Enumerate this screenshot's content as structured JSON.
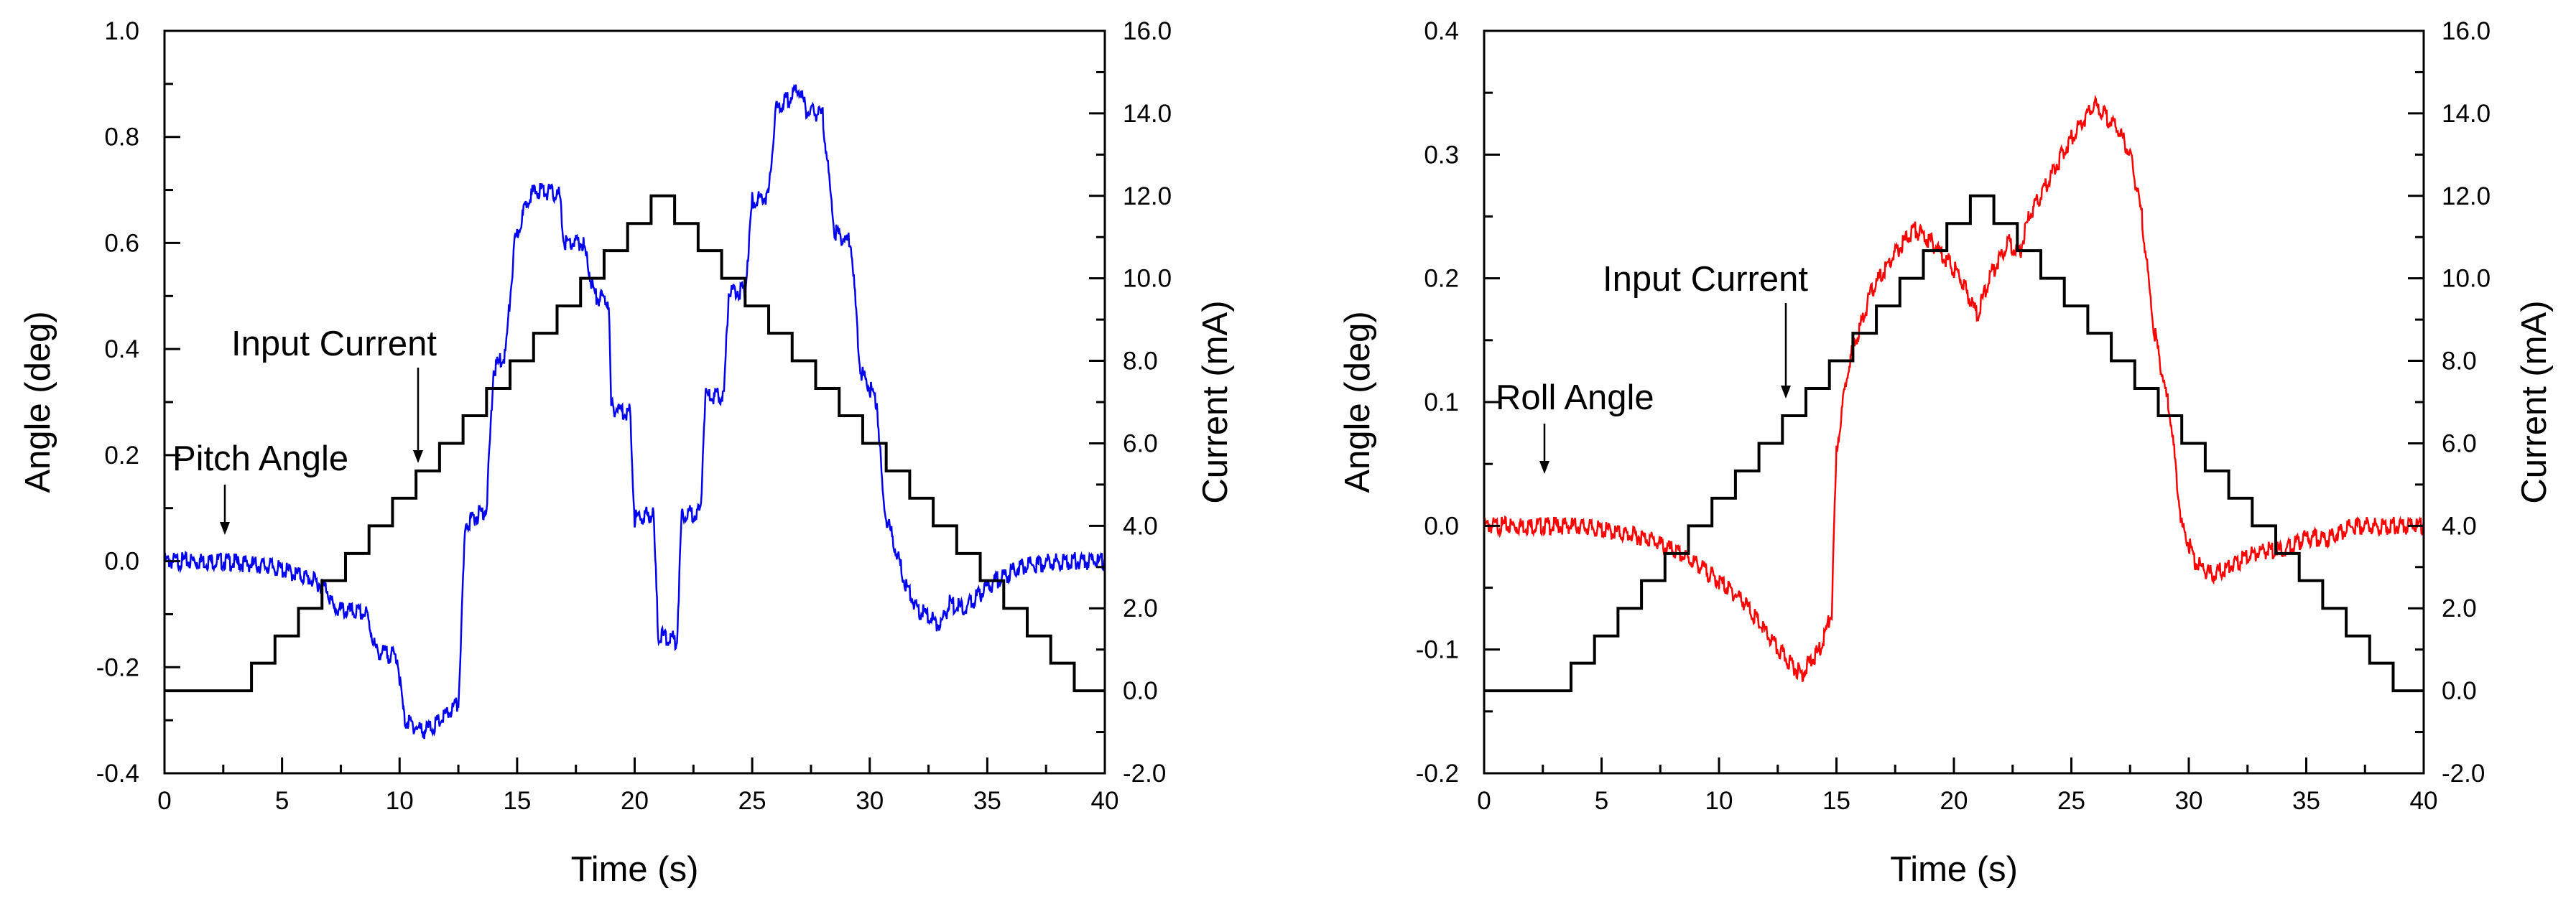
{
  "chart_data": [
    {
      "type": "line",
      "xlabel": "Time (s)",
      "ylabel": "Angle (deg)",
      "y2label": "Current (mA)",
      "xlim": [
        0,
        40
      ],
      "ylim": [
        -0.4,
        1.0
      ],
      "y2lim": [
        -2.0,
        16.0
      ],
      "xticks": [
        "0",
        "5",
        "10",
        "15",
        "20",
        "25",
        "30",
        "35",
        "40"
      ],
      "yticks": [
        "-0.4",
        "-0.2",
        "0.0",
        "0.2",
        "0.4",
        "0.6",
        "0.8",
        "1.0"
      ],
      "y2ticks": [
        "-2.0",
        "0.0",
        "2.0",
        "4.0",
        "6.0",
        "8.0",
        "10.0",
        "12.0",
        "14.0",
        "16.0"
      ],
      "annotations": [
        {
          "text": "Pitch Angle",
          "points_to": {
            "x": 2.6,
            "y": -0.04
          }
        },
        {
          "text": "Input Current",
          "points_to": {
            "x": 10.8,
            "y": 0.11
          }
        }
      ],
      "series": [
        {
          "name": "Pitch Angle",
          "axis": "left",
          "color": "#0000ee",
          "x": [
            0,
            2.5,
            4.5,
            6.0,
            6.9,
            7.2,
            8.6,
            9.0,
            9.9,
            10.2,
            11.0,
            11.5,
            12.5,
            12.8,
            13.7,
            14.0,
            14.5,
            14.9,
            15.5,
            16.0,
            16.8,
            17.0,
            17.8,
            18.3,
            18.9,
            19.0,
            19.8,
            20.0,
            20.8,
            21.0,
            21.8,
            22.0,
            22.8,
            23.0,
            23.8,
            24.0,
            24.7,
            25.0,
            25.7,
            26.0,
            27.0,
            27.3,
            28.0,
            28.5,
            29.2,
            29.6,
            30.3,
            30.6,
            31.5,
            32.0,
            33.0,
            33.4,
            34.0,
            34.5,
            35.0,
            35.6,
            36.5,
            38.0,
            40.0
          ],
          "y": [
            0.0,
            0.0,
            -0.01,
            -0.03,
            -0.05,
            -0.09,
            -0.1,
            -0.17,
            -0.18,
            -0.3,
            -0.32,
            -0.31,
            -0.27,
            0.07,
            0.1,
            0.36,
            0.39,
            0.6,
            0.69,
            0.7,
            0.69,
            0.6,
            0.6,
            0.5,
            0.49,
            0.29,
            0.28,
            0.08,
            0.09,
            -0.14,
            -0.15,
            0.09,
            0.09,
            0.31,
            0.31,
            0.51,
            0.51,
            0.68,
            0.69,
            0.85,
            0.89,
            0.85,
            0.84,
            0.62,
            0.6,
            0.36,
            0.3,
            0.1,
            -0.04,
            -0.09,
            -0.12,
            -0.08,
            -0.09,
            -0.07,
            -0.05,
            -0.03,
            -0.01,
            0.0,
            0.0
          ]
        },
        {
          "name": "Input Current",
          "axis": "right",
          "color": "#000000",
          "step": true,
          "x": [
            0,
            3.7,
            4.7,
            5.7,
            6.7,
            7.7,
            8.7,
            9.7,
            10.7,
            11.7,
            12.7,
            13.7,
            14.7,
            15.7,
            16.7,
            17.7,
            18.7,
            19.7,
            20.7,
            21.7,
            22.7,
            23.7,
            24.7,
            25.7,
            26.7,
            27.7,
            28.7,
            29.7,
            30.7,
            31.7,
            32.7,
            33.7,
            34.7,
            35.7,
            36.7,
            37.7,
            38.7,
            40.0
          ],
          "y": [
            0.0,
            0.67,
            1.33,
            2.0,
            2.67,
            3.33,
            4.0,
            4.67,
            5.33,
            6.0,
            6.67,
            7.33,
            8.0,
            8.67,
            9.33,
            10.0,
            10.67,
            11.33,
            12.0,
            11.33,
            10.67,
            10.0,
            9.33,
            8.67,
            8.0,
            7.33,
            6.67,
            6.0,
            5.33,
            4.67,
            4.0,
            3.33,
            2.67,
            2.0,
            1.33,
            0.67,
            0.0,
            0.0
          ]
        }
      ]
    },
    {
      "type": "line",
      "xlabel": "Time (s)",
      "ylabel": "Angle (deg)",
      "y2label": "Current (mA)",
      "xlim": [
        0,
        40
      ],
      "ylim": [
        -0.2,
        0.4
      ],
      "y2lim": [
        -2.0,
        16.0
      ],
      "xticks": [
        "0",
        "5",
        "10",
        "15",
        "20",
        "25",
        "30",
        "35",
        "40"
      ],
      "yticks": [
        "-0.2",
        "-0.1",
        "0.0",
        "0.1",
        "0.2",
        "0.3",
        "0.4"
      ],
      "y2ticks": [
        "-2.0",
        "0.0",
        "2.0",
        "4.0",
        "6.0",
        "8.0",
        "10.0",
        "12.0",
        "14.0",
        "16.0"
      ],
      "annotations": [
        {
          "text": "Roll Angle",
          "points_to": {
            "x": 2.6,
            "y": 0.02
          }
        },
        {
          "text": "Input Current",
          "points_to": {
            "x": 13.0,
            "y": 0.115
          }
        }
      ],
      "series": [
        {
          "name": "Roll Angle",
          "axis": "left",
          "color": "#ff0000",
          "x": [
            0,
            4,
            7,
            9,
            11,
            12.5,
            13.5,
            14.3,
            14.8,
            15.0,
            15.5,
            16.5,
            17.5,
            18.3,
            19.0,
            19.5,
            20.3,
            21.0,
            21.5,
            22.3,
            22.8,
            23.2,
            23.8,
            24.3,
            25.2,
            26.0,
            27.0,
            27.5,
            28.0,
            28.5,
            29.2,
            29.7,
            30.3,
            31.0,
            32.0,
            33.0,
            34.0,
            35.0,
            36.0,
            37.0,
            38.0,
            40.0
          ],
          "y": [
            0.0,
            0.0,
            -0.01,
            -0.03,
            -0.06,
            -0.1,
            -0.12,
            -0.1,
            -0.07,
            0.06,
            0.13,
            0.19,
            0.22,
            0.24,
            0.23,
            0.22,
            0.2,
            0.17,
            0.2,
            0.23,
            0.22,
            0.25,
            0.27,
            0.29,
            0.32,
            0.34,
            0.32,
            0.3,
            0.25,
            0.16,
            0.09,
            0.0,
            -0.03,
            -0.04,
            -0.03,
            -0.02,
            -0.02,
            -0.01,
            -0.01,
            0.0,
            0.0,
            0.0
          ]
        },
        {
          "name": "Input Current",
          "axis": "right",
          "color": "#000000",
          "step": true,
          "x": [
            0,
            3.7,
            4.7,
            5.7,
            6.7,
            7.7,
            8.7,
            9.7,
            10.7,
            11.7,
            12.7,
            13.7,
            14.7,
            15.7,
            16.7,
            17.7,
            18.7,
            19.7,
            20.7,
            21.7,
            22.7,
            23.7,
            24.7,
            25.7,
            26.7,
            27.7,
            28.7,
            29.7,
            30.7,
            31.7,
            32.7,
            33.7,
            34.7,
            35.7,
            36.7,
            37.7,
            38.7,
            40.0
          ],
          "y": [
            0.0,
            0.67,
            1.33,
            2.0,
            2.67,
            3.33,
            4.0,
            4.67,
            5.33,
            6.0,
            6.67,
            7.33,
            8.0,
            8.67,
            9.33,
            10.0,
            10.67,
            11.33,
            12.0,
            11.33,
            10.67,
            10.0,
            9.33,
            8.67,
            8.0,
            7.33,
            6.67,
            6.0,
            5.33,
            4.67,
            4.0,
            3.33,
            2.67,
            2.0,
            1.33,
            0.67,
            0.0,
            0.0
          ]
        }
      ]
    }
  ]
}
